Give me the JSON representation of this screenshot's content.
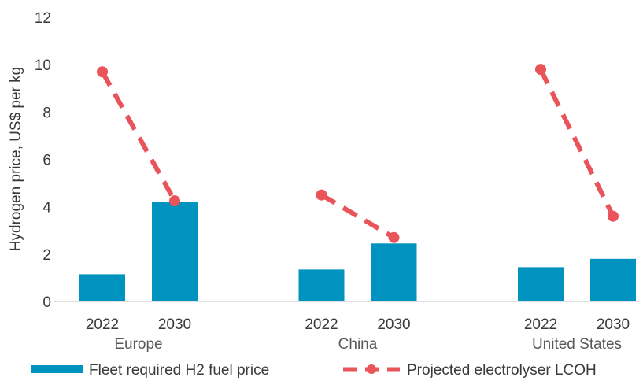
{
  "chart_data": {
    "type": "bar",
    "ylabel": "Hydrogen price, US$ per kg",
    "ylim": [
      0,
      12
    ],
    "yticks": [
      "0",
      "2",
      "4",
      "6",
      "8",
      "10",
      "12"
    ],
    "grid": false,
    "legend_position": "bottom",
    "groups": [
      {
        "name": "Europe",
        "categories": [
          "2022",
          "2030"
        ]
      },
      {
        "name": "China",
        "categories": [
          "2022",
          "2030"
        ]
      },
      {
        "name": "United States",
        "categories": [
          "2022",
          "2030"
        ]
      }
    ],
    "series": [
      {
        "name": "Fleet required H2 fuel price",
        "type": "bar",
        "color": "#0093BF",
        "values": [
          [
            1.15,
            4.2
          ],
          [
            1.35,
            2.45
          ],
          [
            1.45,
            1.8
          ]
        ]
      },
      {
        "name": "Projected electrolyser LCOH",
        "type": "line",
        "style": "dashed",
        "marker": "circle",
        "color": "#E9535A",
        "values": [
          [
            9.7,
            4.25
          ],
          [
            4.5,
            2.7
          ],
          [
            9.8,
            3.6
          ]
        ]
      }
    ]
  }
}
